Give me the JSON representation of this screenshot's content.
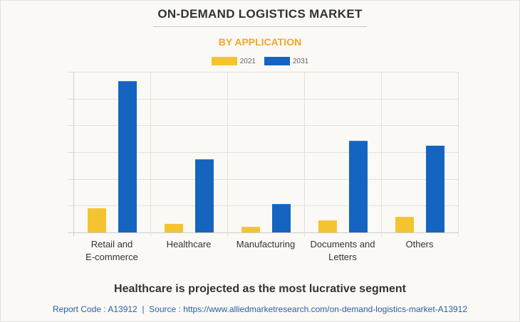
{
  "header": {
    "title": "ON-DEMAND LOGISTICS MARKET",
    "subtitle": "BY APPLICATION"
  },
  "colors": {
    "2021": "#f4c430",
    "2031": "#1565c0",
    "subtitle": "#f5a623",
    "grid": "#e2e0db"
  },
  "chart_data": {
    "type": "bar",
    "title": "ON-DEMAND LOGISTICS MARKET",
    "subtitle": "BY APPLICATION",
    "categories": [
      "Retail and\nE-commerce",
      "Healthcare",
      "Manufacturing",
      "Documents and\nLetters",
      "Others"
    ],
    "category_lines": [
      [
        "Retail and",
        "E-commerce"
      ],
      [
        "Healthcare"
      ],
      [
        "Manufacturing"
      ],
      [
        "Documents and",
        "Letters"
      ],
      [
        "Others"
      ]
    ],
    "series": [
      {
        "name": "2021",
        "values": [
          0.9,
          0.32,
          0.21,
          0.45,
          0.58
        ]
      },
      {
        "name": "2031",
        "values": [
          5.65,
          2.73,
          1.06,
          3.42,
          3.24
        ]
      }
    ],
    "xlabel": "",
    "ylabel": "",
    "ylim": [
      0,
      6
    ],
    "y_ticks_labeled": false,
    "grid": true,
    "legend": "top-center"
  },
  "footer": {
    "insight": "Healthcare is projected as the most lucrative segment",
    "source": "Report Code : A13912  |  Source : https://www.alliedmarketresearch.com/on-demand-logistics-market-A13912"
  }
}
